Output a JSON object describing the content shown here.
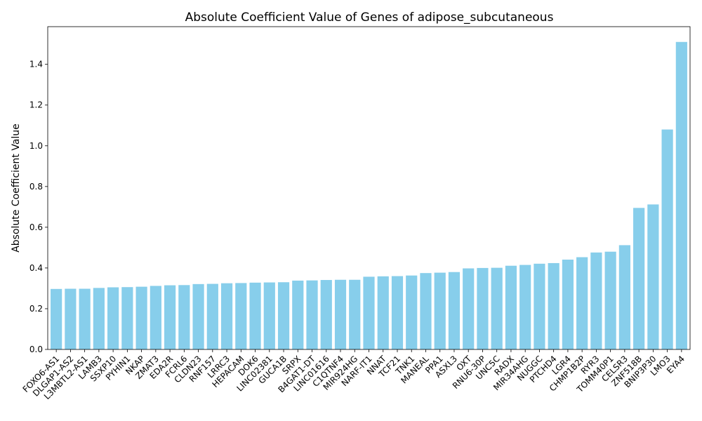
{
  "chart_data": {
    "type": "bar",
    "title": "Absolute Coefficient Value of Genes of adipose_subcutaneous",
    "xlabel": "",
    "ylabel": "Absolute Coefficient Value",
    "ylim": [
      0,
      1.585
    ],
    "yticks": [
      0.0,
      0.2,
      0.4,
      0.6,
      0.8,
      1.0,
      1.2,
      1.4
    ],
    "ytick_labels": [
      "0.0",
      "0.2",
      "0.4",
      "0.6",
      "0.8",
      "1.0",
      "1.2",
      "1.4"
    ],
    "bar_color": "#87CEEB",
    "grid": false,
    "categories": [
      "FOXO6-AS1",
      "DLGAP1-AS2",
      "L3MBTL2-AS1",
      "LAMB3",
      "SSXP10",
      "PYHIN1",
      "NKAP",
      "ZMAT3",
      "EDA2R",
      "FCRL6",
      "CLDN23",
      "RNF157",
      "LRRC3",
      "HEPACAM",
      "DOK6",
      "LINC02381",
      "GUCA1B",
      "SRPX",
      "B4GAT1-DT",
      "LINC01616",
      "C1QTNF4",
      "MIR924HG",
      "NARF-IT1",
      "NNAT",
      "TCF21",
      "TNK1",
      "MANEAL",
      "PPA1",
      "ASXL3",
      "OXT",
      "RNU6-30P",
      "UNC5C",
      "RADX",
      "MIR34AHG",
      "NUGGC",
      "PTCHD4",
      "LGR4",
      "CHMP1B2P",
      "RYR3",
      "TOMM40P1",
      "CELSR3",
      "ZNF518B",
      "BNIP3P30",
      "LMO3",
      "EYA4"
    ],
    "values": [
      0.297,
      0.298,
      0.298,
      0.302,
      0.305,
      0.306,
      0.308,
      0.312,
      0.315,
      0.316,
      0.321,
      0.322,
      0.325,
      0.326,
      0.328,
      0.329,
      0.33,
      0.338,
      0.339,
      0.341,
      0.342,
      0.342,
      0.357,
      0.359,
      0.36,
      0.363,
      0.375,
      0.377,
      0.38,
      0.398,
      0.4,
      0.401,
      0.411,
      0.415,
      0.421,
      0.424,
      0.441,
      0.453,
      0.476,
      0.48,
      0.512,
      0.695,
      0.712,
      1.08,
      1.51
    ]
  }
}
